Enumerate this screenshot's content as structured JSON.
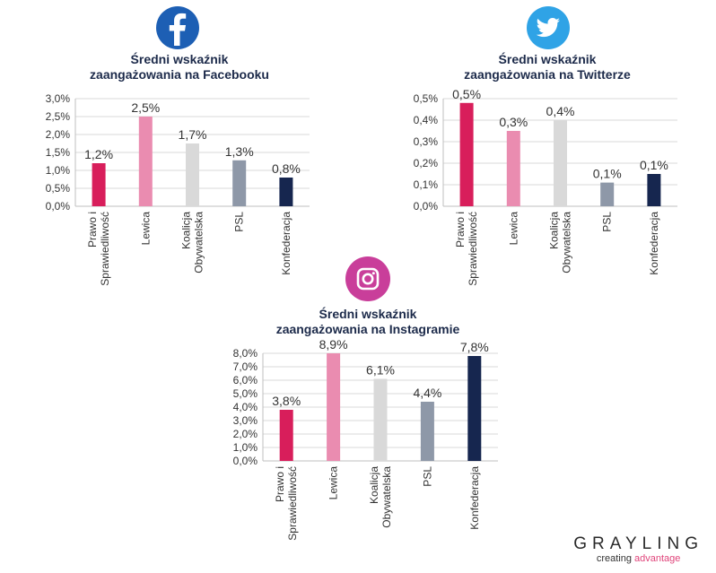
{
  "chart_data": [
    {
      "id": "facebook",
      "type": "bar",
      "icon": "facebook-icon",
      "title_line1": "Średni wskaźnik",
      "title_line2": "zaangażowania na Facebooku",
      "categories": [
        "Prawo i Sprawiedliwość",
        "Lewica",
        "Koalicja Obywatelska",
        "PSL",
        "Konfederacja"
      ],
      "category_lines": [
        [
          "Prawo i",
          "Sprawiedliwość"
        ],
        [
          "Lewica"
        ],
        [
          "Koalicja",
          "Obywatelska"
        ],
        [
          "PSL"
        ],
        [
          "Konfederacja"
        ]
      ],
      "values": [
        1.2,
        2.5,
        1.75,
        1.28,
        0.8
      ],
      "data_labels": [
        "1,2%",
        "2,5%",
        "1,7%",
        "1,3%",
        "0,8%"
      ],
      "ylim": [
        0,
        3.0
      ],
      "yticks": [
        0,
        0.5,
        1.0,
        1.5,
        2.0,
        2.5,
        3.0
      ],
      "ytick_labels": [
        "0,0%",
        "0,5%",
        "1,0%",
        "1,5%",
        "2,0%",
        "2,5%",
        "3,0%"
      ]
    },
    {
      "id": "twitter",
      "type": "bar",
      "icon": "twitter-icon",
      "title_line1": "Średni wskaźnik",
      "title_line2": "zaangażowania na Twitterze",
      "categories": [
        "Prawo i Sprawiedliwość",
        "Lewica",
        "Koalicja Obywatelska",
        "PSL",
        "Konfederacja"
      ],
      "category_lines": [
        [
          "Prawo i",
          "Sprawiedliwość"
        ],
        [
          "Lewica"
        ],
        [
          "Koalicja",
          "Obywatelska"
        ],
        [
          "PSL"
        ],
        [
          "Konfederacja"
        ]
      ],
      "values": [
        0.48,
        0.35,
        0.4,
        0.11,
        0.15
      ],
      "data_labels": [
        "0,5%",
        "0,3%",
        "0,4%",
        "0,1%",
        "0,1%"
      ],
      "ylim": [
        0,
        0.5
      ],
      "yticks": [
        0,
        0.1,
        0.2,
        0.3,
        0.4,
        0.5
      ],
      "ytick_labels": [
        "0,0%",
        "0,1%",
        "0,2%",
        "0,3%",
        "0,4%",
        "0,5%"
      ]
    },
    {
      "id": "instagram",
      "type": "bar",
      "icon": "instagram-icon",
      "title_line1": "Średni wskaźnik",
      "title_line2": "zaangażowania na Instagramie",
      "categories": [
        "Prawo i Sprawiedliwość",
        "Lewica",
        "Koalicja Obywatelska",
        "PSL",
        "Konfederacja"
      ],
      "category_lines": [
        [
          "Prawo i",
          "Sprawiedliwość"
        ],
        [
          "Lewica"
        ],
        [
          "Koalicja",
          "Obywatelska"
        ],
        [
          "PSL"
        ],
        [
          "Konfederacja"
        ]
      ],
      "values": [
        3.8,
        8.9,
        6.1,
        4.4,
        7.8
      ],
      "data_labels": [
        "3,8%",
        "8,9%",
        "6,1%",
        "4,4%",
        "7,8%"
      ],
      "ylim": [
        0,
        8.0
      ],
      "yticks": [
        0,
        1,
        2,
        3,
        4,
        5,
        6,
        7,
        8
      ],
      "ytick_labels": [
        "0,0%",
        "1,0%",
        "2,0%",
        "3,0%",
        "4,0%",
        "5,0%",
        "6,0%",
        "7,0%",
        "8,0%"
      ]
    }
  ],
  "colors": {
    "party": [
      "#d81e5b",
      "#ea8cb0",
      "#d9d9d9",
      "#8e98a8",
      "#16264f"
    ],
    "facebook": "#1d5fb4",
    "twitter": "#2fa3e6",
    "instagram": "#c93e9a",
    "title": "#1c2a4a"
  },
  "branding": {
    "name": "GRAYLING",
    "tagline_part1": "creating ",
    "tagline_part2": "advantage"
  }
}
